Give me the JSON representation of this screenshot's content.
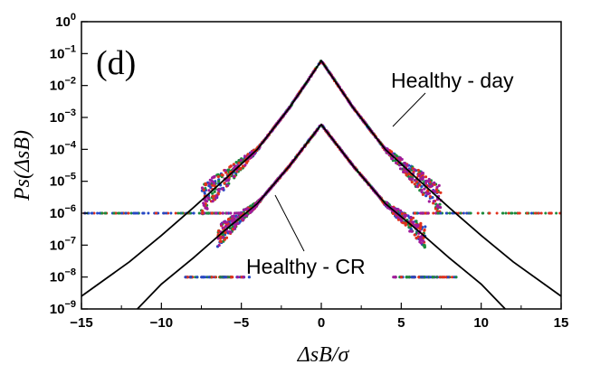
{
  "chart_data": {
    "type": "scatter",
    "panel_label": "(d)",
    "xlabel": "ΔsB/σ",
    "ylabel": "Ps(ΔsB)",
    "xlim": [
      -15,
      15
    ],
    "ylim_log10": [
      -9,
      0
    ],
    "y_scale": "log",
    "x_ticks": [
      -15,
      -10,
      -5,
      0,
      5,
      10,
      15
    ],
    "y_ticks": [
      "10^0",
      "10^-1",
      "10^-2",
      "10^-3",
      "10^-4",
      "10^-5",
      "10^-6",
      "10^-7",
      "10^-8",
      "10^-9"
    ],
    "grid": false,
    "series_colors": [
      "#2448c4",
      "#1c8a3c",
      "#e0301c",
      "#a01a9a"
    ],
    "fit_color": "#000000",
    "groups": [
      {
        "label": "Healthy - day",
        "peak_value": 0.06,
        "fit_curve": [
          {
            "x": -15,
            "y": 2.5e-09
          },
          {
            "x": -12,
            "y": 3e-08
          },
          {
            "x": -10,
            "y": 2e-07
          },
          {
            "x": -8,
            "y": 1.5e-06
          },
          {
            "x": -6,
            "y": 1.2e-05
          },
          {
            "x": -4,
            "y": 0.0001
          },
          {
            "x": -2,
            "y": 0.002
          },
          {
            "x": 0,
            "y": 0.06
          },
          {
            "x": 2,
            "y": 0.002
          },
          {
            "x": 4,
            "y": 0.0001
          },
          {
            "x": 6,
            "y": 1.2e-05
          },
          {
            "x": 8,
            "y": 1.5e-06
          },
          {
            "x": 10,
            "y": 2e-07
          },
          {
            "x": 12,
            "y": 3e-08
          },
          {
            "x": 15,
            "y": 2.5e-09
          }
        ],
        "noise_floor": 1e-06
      },
      {
        "label": "Healthy - CR",
        "peak_value": 0.0006,
        "fit_curve": [
          {
            "x": -11.5,
            "y": 1e-09
          },
          {
            "x": -10,
            "y": 6e-09
          },
          {
            "x": -8,
            "y": 4e-08
          },
          {
            "x": -6,
            "y": 3e-07
          },
          {
            "x": -4,
            "y": 2e-06
          },
          {
            "x": -2,
            "y": 3e-05
          },
          {
            "x": 0,
            "y": 0.0006
          },
          {
            "x": 2,
            "y": 3e-05
          },
          {
            "x": 4,
            "y": 2e-06
          },
          {
            "x": 6,
            "y": 3e-07
          },
          {
            "x": 8,
            "y": 4e-08
          },
          {
            "x": 10,
            "y": 6e-09
          },
          {
            "x": 11.5,
            "y": 1e-09
          }
        ],
        "noise_floor": 1e-08
      }
    ]
  }
}
